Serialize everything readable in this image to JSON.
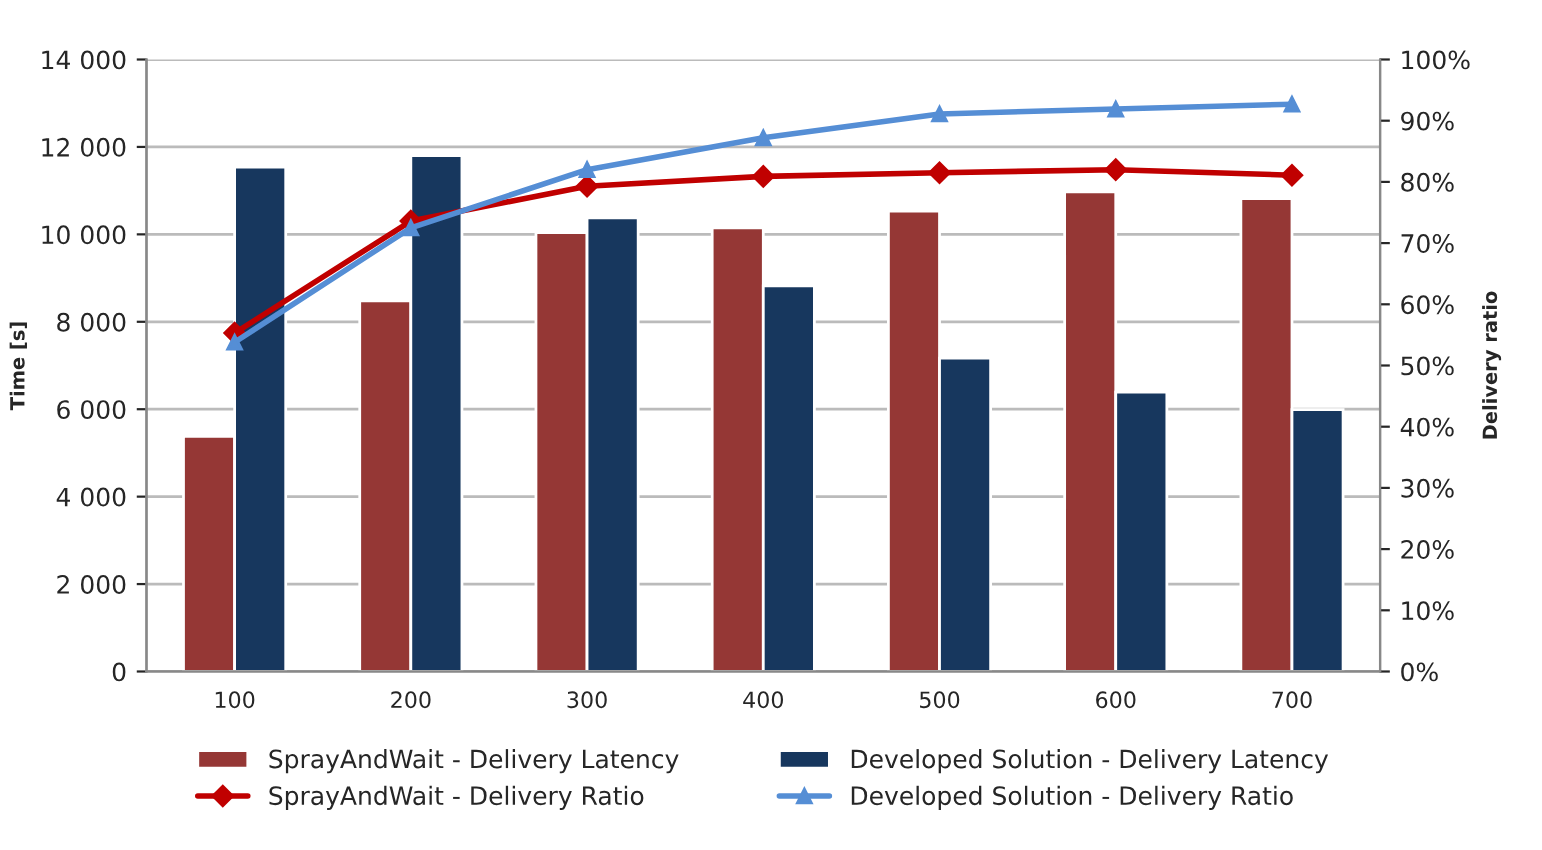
{
  "chart_data": {
    "type": "bar",
    "categories": [
      "100",
      "200",
      "300",
      "400",
      "500",
      "600",
      "700"
    ],
    "ylabel": "Time [s]",
    "y2label": "Delivery ratio",
    "ylim": [
      0,
      14000
    ],
    "yticks": [
      {
        "value": 0,
        "label": "0"
      },
      {
        "value": 2000,
        "label": "2 000"
      },
      {
        "value": 4000,
        "label": "4 000"
      },
      {
        "value": 6000,
        "label": "6 000"
      },
      {
        "value": 8000,
        "label": "8 000"
      },
      {
        "value": 10000,
        "label": "10 000"
      },
      {
        "value": 12000,
        "label": "12 000"
      },
      {
        "value": 14000,
        "label": "14 000"
      }
    ],
    "y2lim": [
      0,
      100
    ],
    "y2ticks": [
      {
        "value": 0,
        "label": "0%"
      },
      {
        "value": 10,
        "label": "10%"
      },
      {
        "value": 20,
        "label": "20%"
      },
      {
        "value": 30,
        "label": "30%"
      },
      {
        "value": 40,
        "label": "40%"
      },
      {
        "value": 50,
        "label": "50%"
      },
      {
        "value": 60,
        "label": "60%"
      },
      {
        "value": 70,
        "label": "70%"
      },
      {
        "value": 80,
        "label": "80%"
      },
      {
        "value": 90,
        "label": "90%"
      },
      {
        "value": 100,
        "label": "100%"
      }
    ],
    "grid": "y",
    "legend": "bottom",
    "series": [
      {
        "name": "SprayAndWait - Delivery Latency",
        "color": "#953735",
        "values": [
          5380,
          8480,
          10040,
          10150,
          10530,
          10970,
          10820
        ]
      },
      {
        "name": "Developed Solution - Delivery Latency",
        "color": "#17375e",
        "values": [
          11540,
          11800,
          10380,
          8820,
          7170,
          6390,
          5990
        ]
      },
      {
        "name": "SprayAndWait - Delivery Ratio",
        "type": "line",
        "axis": "y2",
        "marker": "diamond",
        "color": "#c00000",
        "values": [
          55.3,
          73.6,
          79.3,
          80.9,
          81.5,
          82.0,
          81.1
        ]
      },
      {
        "name": "Developed Solution - Delivery Ratio",
        "type": "line",
        "axis": "y2",
        "marker": "triangle",
        "color": "#558ed5",
        "values": [
          53.8,
          72.5,
          82.0,
          87.2,
          91.1,
          91.9,
          92.7
        ]
      }
    ]
  }
}
